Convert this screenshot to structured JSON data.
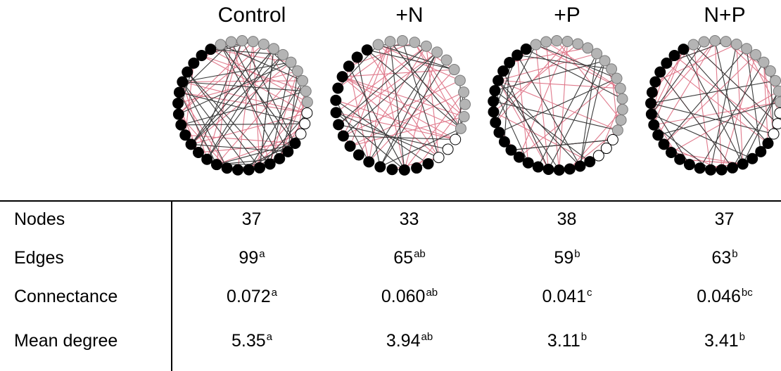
{
  "treatments": [
    "Control",
    "+N",
    "+P",
    "N+P"
  ],
  "table": {
    "rows": [
      {
        "label": "Nodes",
        "cells": [
          {
            "value": "37",
            "sup": ""
          },
          {
            "value": "33",
            "sup": ""
          },
          {
            "value": "38",
            "sup": ""
          },
          {
            "value": "37",
            "sup": ""
          }
        ]
      },
      {
        "label": "Edges",
        "cells": [
          {
            "value": "99",
            "sup": "a"
          },
          {
            "value": "65",
            "sup": "ab"
          },
          {
            "value": "59",
            "sup": "b"
          },
          {
            "value": "63",
            "sup": "b"
          }
        ]
      },
      {
        "label": "Connectance",
        "cells": [
          {
            "value": "0.072",
            "sup": "a"
          },
          {
            "value": "0.060",
            "sup": "ab"
          },
          {
            "value": "0.041",
            "sup": "c"
          },
          {
            "value": "0.046",
            "sup": "bc"
          }
        ]
      },
      {
        "label": "Mean degree",
        "cells": [
          {
            "value": "5.35",
            "sup": "a"
          },
          {
            "value": "3.94",
            "sup": "ab"
          },
          {
            "value": "3.11",
            "sup": "b"
          },
          {
            "value": "3.41",
            "sup": "b"
          }
        ]
      }
    ]
  },
  "networks": [
    {
      "nodes": {
        "gray": 12,
        "white": 3,
        "black": 22
      },
      "edges": {
        "black": 55,
        "red": 44
      }
    },
    {
      "nodes": {
        "gray": 13,
        "white": 3,
        "black": 17
      },
      "edges": {
        "black": 30,
        "red": 35
      }
    },
    {
      "nodes": {
        "gray": 15,
        "white": 3,
        "black": 20
      },
      "edges": {
        "black": 27,
        "red": 32
      }
    },
    {
      "nodes": {
        "gray": 12,
        "white": 3,
        "black": 22
      },
      "edges": {
        "black": 25,
        "red": 38
      }
    }
  ],
  "colors": {
    "gray_node": "#b4b4b4",
    "white_node": "#ffffff",
    "black_node": "#000000",
    "black_edge": "#3a3a3a",
    "red_edge": "#e07a8c"
  }
}
